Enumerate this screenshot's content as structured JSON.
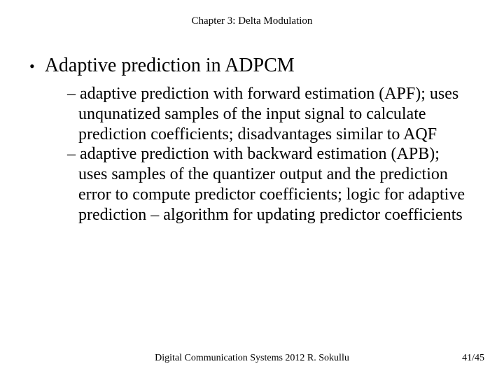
{
  "header": {
    "chapter": "Chapter 3: Delta Modulation"
  },
  "main": {
    "bullet_glyph": "•",
    "title": "Adaptive prediction in ADPCM"
  },
  "sub": {
    "dash": "–",
    "items": [
      "adaptive prediction with forward estimation (APF); uses unqunatized samples of the input signal to calculate prediction coefficients; disadvantages similar to AQF",
      "adaptive prediction with backward estimation (APB); uses samples of the quantizer output and the prediction error to compute predictor coefficients; logic for adaptive prediction – algorithm for updating predictor coefficients"
    ]
  },
  "footer": {
    "center": "Digital Communication Systems 2012  R. Sokullu",
    "page": "41/45"
  },
  "colors": {
    "text": "#000000",
    "background": "#ffffff"
  },
  "typography": {
    "header_fontsize": 15,
    "title_fontsize": 28,
    "body_fontsize": 24,
    "footer_fontsize": 14,
    "font_family": "Times New Roman"
  }
}
